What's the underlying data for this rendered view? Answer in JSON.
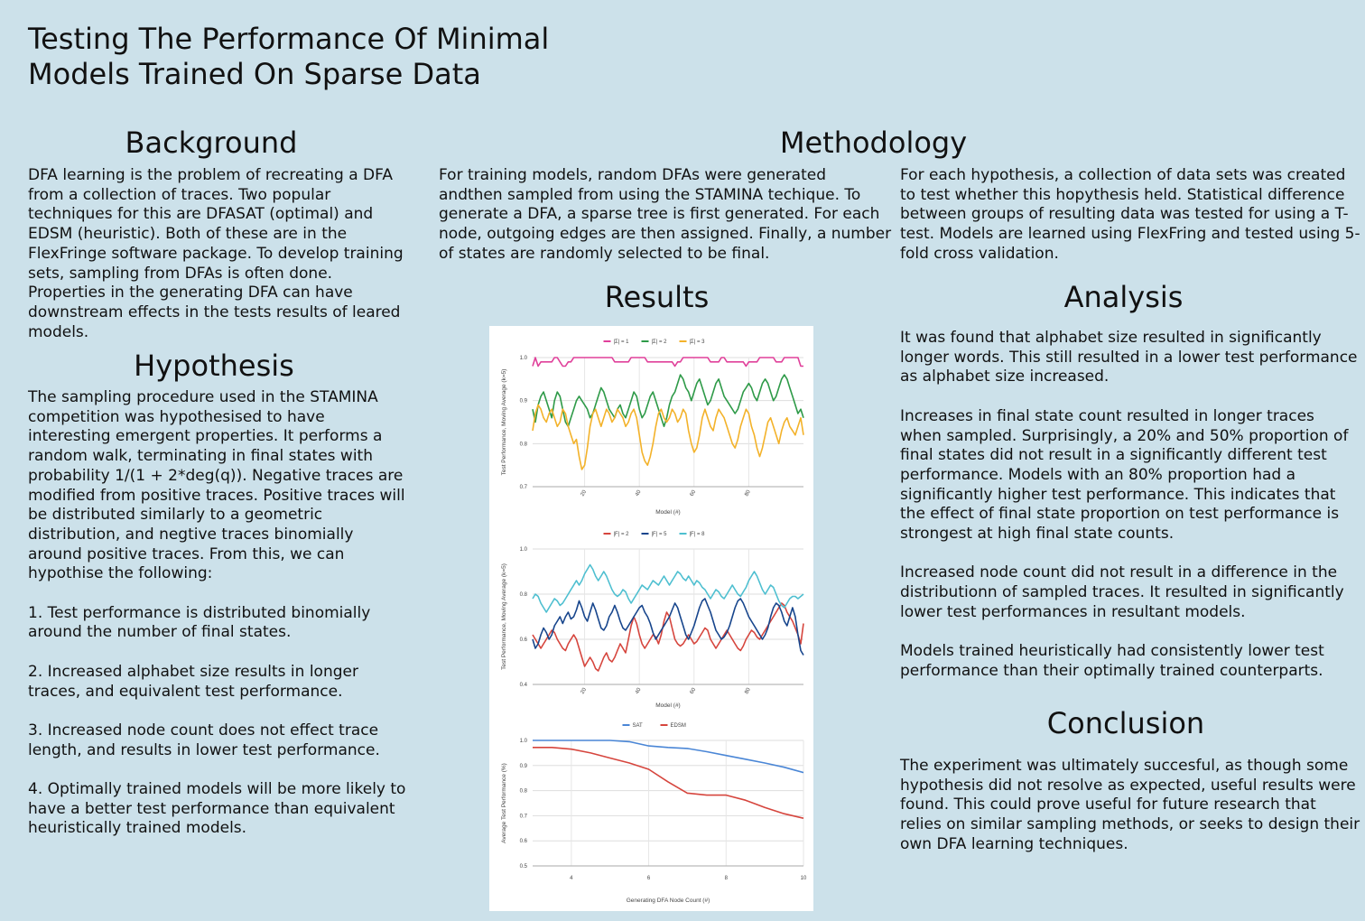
{
  "title": "Testing The Performance Of Minimal Models Trained On Sparse Data",
  "background": {
    "heading": "Background",
    "text": "DFA learning is the problem of recreating a DFA from a collection of traces. Two popular techniques for this are DFASAT (optimal) and EDSM (heuristic). Both of these are in the FlexFringe software package. To develop training sets, sampling from DFAs is often done. Properties in the generating DFA can have downstream effects in the tests results of leared models."
  },
  "hypothesis": {
    "heading": "Hypothesis",
    "text": "The sampling procedure used in the STAMINA competition was hypothesised to have interesting emergent properties. It performs a random walk, terminating in final states with probability 1/(1 + 2*deg(q)). Negative traces are modified from positive traces. Positive traces will be distributed similarly to a geometric distribution, and negtive traces binomially around positive traces. From this, we can hypothise the following:\n\n1. Test performance is distributed binomially around the number of final states.\n\n2. Increased alphabet size results in longer traces, and equivalent test performance.\n\n3. Increased node count does not effect trace length, and results in lower test performance.\n\n4. Optimally trained models will be more likely to have a better test performance than equivalent heuristically trained models."
  },
  "methodology": {
    "heading": "Methodology",
    "text_left": "For training models, random DFAs were generated andthen sampled from using the STAMINA techique. To generate a DFA, a sparse tree is first generated. For each node, outgoing edges are then assigned. Finally, a number of states are randomly selected to be final.",
    "text_right": "For each hypothesis, a collection of data sets was created to test whether this hopythesis held. Statistical difference between groups of resulting data was tested for using a T-test. Models are learned using FlexFring and tested using 5-fold cross validation."
  },
  "results": {
    "heading": "Results"
  },
  "analysis": {
    "heading": "Analysis",
    "text": "It was found that alphabet size resulted in significantly longer words. This still resulted in a lower test performance as alphabet size increased.\n\nIncreases in final state count resulted in longer traces when sampled. Surprisingly, a 20% and 50% proportion of final states did not result in a significantly different test performance. Models with an 80% proportion had a significantly higher test performance. This indicates that the effect of final state proportion on test performance is strongest at high final state counts.\n\nIncreased node count did not result in a difference in the distributionn of sampled traces. It resulted in significantly lower test performances in resultant models.\n\nModels trained heuristically had consistently lower test performance than their optimally trained counterparts."
  },
  "conclusion": {
    "heading": "Conclusion",
    "text": "The experiment was ultimately succesful, as though some hypothesis did not resolve as expected, useful results were found. This could prove useful for future research that relies on similar sampling methods, or seeks to design their own DFA learning techniques."
  },
  "chart_data": [
    {
      "type": "line",
      "xlabel": "Model (#)",
      "ylabel": "Test Performance, Moving Average (k=5)",
      "x_range": [
        1,
        100
      ],
      "x_ticks": [
        "20",
        "40",
        "60",
        "80"
      ],
      "ylim": [
        0.7,
        1.0
      ],
      "y_ticks": [
        "0.7",
        "0.8",
        "0.9",
        "1.0"
      ],
      "legend_position": "top",
      "series": [
        {
          "name": "|Σ| = 1",
          "color": "#e0409a",
          "values": [
            0.98,
            1.0,
            0.98,
            0.99,
            0.99,
            0.99,
            0.99,
            0.99,
            1.0,
            1.0,
            0.99,
            0.98,
            0.98,
            0.99,
            0.99,
            1.0,
            1.0,
            1.0,
            1.0,
            1.0,
            1.0,
            1.0,
            1.0,
            1.0,
            1.0,
            1.0,
            1.0,
            1.0,
            1.0,
            1.0,
            0.99,
            0.99,
            0.99,
            0.99,
            0.99,
            0.99,
            1.0,
            1.0,
            1.0,
            1.0,
            1.0,
            1.0,
            0.99,
            0.99,
            0.99,
            0.99,
            0.99,
            0.99,
            0.99,
            0.99,
            0.99,
            0.99,
            0.98,
            0.99,
            0.99,
            1.0,
            1.0,
            1.0,
            1.0,
            1.0,
            1.0,
            1.0,
            1.0,
            1.0,
            1.0,
            0.99,
            0.99,
            0.99,
            0.99,
            1.0,
            1.0,
            0.99,
            0.99,
            0.99,
            0.99,
            0.99,
            0.99,
            0.99,
            0.98,
            0.99,
            0.99,
            0.99,
            0.99,
            1.0,
            1.0,
            1.0,
            1.0,
            1.0,
            1.0,
            0.99,
            0.99,
            0.99,
            1.0,
            1.0,
            1.0,
            1.0,
            1.0,
            1.0,
            0.98,
            0.98
          ]
        },
        {
          "name": "|Σ| = 2",
          "color": "#2e9a48",
          "values": [
            0.88,
            0.85,
            0.89,
            0.91,
            0.92,
            0.9,
            0.88,
            0.86,
            0.9,
            0.92,
            0.91,
            0.88,
            0.85,
            0.84,
            0.86,
            0.88,
            0.9,
            0.91,
            0.9,
            0.89,
            0.88,
            0.86,
            0.87,
            0.89,
            0.91,
            0.93,
            0.92,
            0.9,
            0.88,
            0.87,
            0.86,
            0.88,
            0.89,
            0.87,
            0.86,
            0.88,
            0.9,
            0.92,
            0.91,
            0.88,
            0.86,
            0.87,
            0.89,
            0.91,
            0.92,
            0.9,
            0.88,
            0.86,
            0.84,
            0.86,
            0.89,
            0.91,
            0.92,
            0.94,
            0.96,
            0.95,
            0.93,
            0.92,
            0.9,
            0.92,
            0.94,
            0.95,
            0.93,
            0.91,
            0.89,
            0.9,
            0.92,
            0.94,
            0.95,
            0.93,
            0.91,
            0.9,
            0.89,
            0.88,
            0.87,
            0.88,
            0.9,
            0.92,
            0.93,
            0.94,
            0.93,
            0.91,
            0.9,
            0.92,
            0.94,
            0.95,
            0.94,
            0.92,
            0.9,
            0.91,
            0.93,
            0.95,
            0.96,
            0.95,
            0.93,
            0.91,
            0.89,
            0.87,
            0.88,
            0.86
          ]
        },
        {
          "name": "|Σ| = 3",
          "color": "#f3b22a",
          "values": [
            0.83,
            0.87,
            0.89,
            0.88,
            0.86,
            0.85,
            0.87,
            0.88,
            0.86,
            0.84,
            0.85,
            0.88,
            0.87,
            0.84,
            0.82,
            0.8,
            0.81,
            0.77,
            0.74,
            0.75,
            0.79,
            0.84,
            0.87,
            0.88,
            0.86,
            0.84,
            0.86,
            0.88,
            0.87,
            0.85,
            0.86,
            0.88,
            0.87,
            0.86,
            0.84,
            0.85,
            0.87,
            0.88,
            0.86,
            0.82,
            0.78,
            0.76,
            0.75,
            0.77,
            0.8,
            0.84,
            0.87,
            0.88,
            0.86,
            0.85,
            0.86,
            0.88,
            0.87,
            0.85,
            0.86,
            0.88,
            0.87,
            0.83,
            0.8,
            0.78,
            0.79,
            0.82,
            0.86,
            0.88,
            0.86,
            0.84,
            0.83,
            0.86,
            0.88,
            0.87,
            0.86,
            0.84,
            0.82,
            0.8,
            0.79,
            0.81,
            0.84,
            0.86,
            0.88,
            0.87,
            0.84,
            0.82,
            0.79,
            0.77,
            0.79,
            0.82,
            0.85,
            0.86,
            0.84,
            0.82,
            0.8,
            0.83,
            0.85,
            0.86,
            0.84,
            0.83,
            0.82,
            0.84,
            0.86,
            0.82
          ]
        }
      ]
    },
    {
      "type": "line",
      "xlabel": "Model (#)",
      "ylabel": "Test Performance, Moving Average (k=5)",
      "x_range": [
        1,
        100
      ],
      "x_ticks": [
        "20",
        "40",
        "60",
        "80"
      ],
      "ylim": [
        0.4,
        1.0
      ],
      "y_ticks": [
        "0.4",
        "0.6",
        "0.8",
        "1.0"
      ],
      "legend_position": "top",
      "series": [
        {
          "name": "|F| = 2",
          "color": "#d6453d",
          "values": [
            0.62,
            0.6,
            0.58,
            0.56,
            0.58,
            0.6,
            0.62,
            0.64,
            0.63,
            0.6,
            0.58,
            0.56,
            0.55,
            0.58,
            0.6,
            0.62,
            0.6,
            0.56,
            0.52,
            0.48,
            0.5,
            0.52,
            0.5,
            0.47,
            0.46,
            0.49,
            0.52,
            0.54,
            0.51,
            0.5,
            0.52,
            0.55,
            0.58,
            0.56,
            0.54,
            0.6,
            0.66,
            0.7,
            0.67,
            0.62,
            0.58,
            0.56,
            0.58,
            0.6,
            0.62,
            0.61,
            0.58,
            0.62,
            0.68,
            0.72,
            0.7,
            0.65,
            0.6,
            0.58,
            0.57,
            0.58,
            0.6,
            0.62,
            0.6,
            0.58,
            0.59,
            0.61,
            0.63,
            0.65,
            0.64,
            0.6,
            0.58,
            0.56,
            0.58,
            0.6,
            0.62,
            0.64,
            0.62,
            0.6,
            0.58,
            0.56,
            0.55,
            0.57,
            0.6,
            0.62,
            0.64,
            0.63,
            0.61,
            0.6,
            0.62,
            0.64,
            0.66,
            0.68,
            0.7,
            0.72,
            0.74,
            0.76,
            0.75,
            0.72,
            0.7,
            0.68,
            0.65,
            0.62,
            0.58,
            0.67
          ]
        },
        {
          "name": "|F| = 5",
          "color": "#17458c",
          "values": [
            0.6,
            0.56,
            0.58,
            0.62,
            0.65,
            0.63,
            0.6,
            0.62,
            0.66,
            0.68,
            0.7,
            0.67,
            0.7,
            0.72,
            0.69,
            0.7,
            0.73,
            0.77,
            0.74,
            0.7,
            0.68,
            0.72,
            0.76,
            0.73,
            0.69,
            0.65,
            0.64,
            0.66,
            0.7,
            0.72,
            0.75,
            0.72,
            0.68,
            0.65,
            0.64,
            0.66,
            0.68,
            0.7,
            0.72,
            0.74,
            0.75,
            0.72,
            0.7,
            0.67,
            0.63,
            0.6,
            0.62,
            0.64,
            0.66,
            0.68,
            0.7,
            0.73,
            0.76,
            0.74,
            0.7,
            0.66,
            0.62,
            0.6,
            0.63,
            0.66,
            0.7,
            0.74,
            0.77,
            0.78,
            0.75,
            0.72,
            0.68,
            0.64,
            0.62,
            0.6,
            0.61,
            0.63,
            0.66,
            0.7,
            0.74,
            0.77,
            0.78,
            0.76,
            0.73,
            0.7,
            0.68,
            0.66,
            0.64,
            0.62,
            0.6,
            0.62,
            0.65,
            0.7,
            0.74,
            0.76,
            0.75,
            0.72,
            0.68,
            0.66,
            0.7,
            0.74,
            0.7,
            0.62,
            0.55,
            0.53
          ]
        },
        {
          "name": "|F| = 8",
          "color": "#4ebfd0",
          "values": [
            0.78,
            0.8,
            0.79,
            0.76,
            0.74,
            0.72,
            0.74,
            0.76,
            0.78,
            0.77,
            0.75,
            0.76,
            0.78,
            0.8,
            0.82,
            0.84,
            0.86,
            0.84,
            0.86,
            0.89,
            0.91,
            0.93,
            0.91,
            0.88,
            0.86,
            0.88,
            0.9,
            0.88,
            0.85,
            0.82,
            0.8,
            0.79,
            0.8,
            0.82,
            0.81,
            0.78,
            0.76,
            0.78,
            0.8,
            0.82,
            0.84,
            0.83,
            0.82,
            0.84,
            0.86,
            0.85,
            0.84,
            0.86,
            0.88,
            0.86,
            0.84,
            0.86,
            0.88,
            0.9,
            0.89,
            0.87,
            0.86,
            0.88,
            0.86,
            0.84,
            0.86,
            0.85,
            0.83,
            0.82,
            0.8,
            0.78,
            0.8,
            0.82,
            0.81,
            0.79,
            0.78,
            0.8,
            0.82,
            0.84,
            0.82,
            0.8,
            0.79,
            0.81,
            0.83,
            0.86,
            0.88,
            0.9,
            0.88,
            0.85,
            0.82,
            0.8,
            0.82,
            0.84,
            0.83,
            0.8,
            0.77,
            0.75,
            0.74,
            0.76,
            0.78,
            0.79,
            0.79,
            0.78,
            0.79,
            0.8
          ]
        }
      ]
    },
    {
      "type": "line",
      "xlabel": "Generating DFA Node Count (#)",
      "ylabel": "Average Test Performance (%)",
      "x_range": [
        3,
        10
      ],
      "x_ticks": [
        "4",
        "6",
        "8",
        "10"
      ],
      "ylim": [
        0.5,
        1.0
      ],
      "y_ticks": [
        "0.5",
        "0.6",
        "0.7",
        "0.8",
        "0.9",
        "1.0"
      ],
      "legend_position": "top",
      "series": [
        {
          "name": "SAT",
          "color": "#4a86d6",
          "x": [
            3,
            3.5,
            4,
            4.5,
            5,
            5.5,
            6,
            6.5,
            7,
            7.5,
            8,
            8.5,
            9,
            9.5,
            10
          ],
          "values": [
            1.0,
            1.0,
            1.0,
            1.0,
            1.0,
            0.995,
            0.978,
            0.972,
            0.968,
            0.955,
            0.94,
            0.925,
            0.91,
            0.893,
            0.872
          ]
        },
        {
          "name": "EDSM",
          "color": "#d6453d",
          "x": [
            3,
            3.5,
            4,
            4.5,
            5,
            5.5,
            6,
            6.5,
            7,
            7.5,
            8,
            8.5,
            9,
            9.5,
            10
          ],
          "values": [
            0.972,
            0.972,
            0.965,
            0.95,
            0.93,
            0.91,
            0.885,
            0.835,
            0.79,
            0.782,
            0.782,
            0.762,
            0.733,
            0.708,
            0.69
          ]
        }
      ]
    }
  ]
}
